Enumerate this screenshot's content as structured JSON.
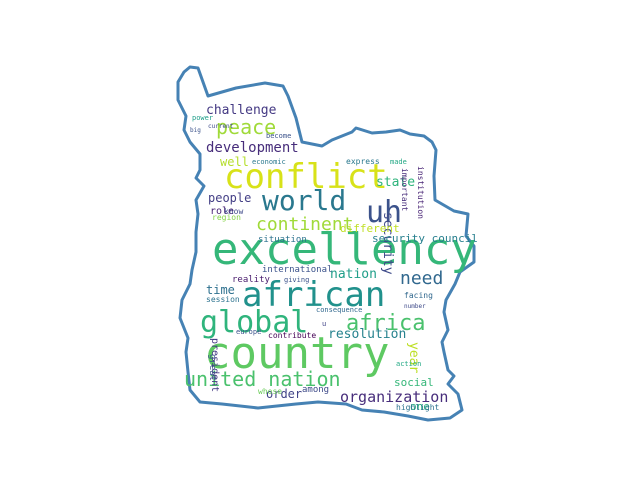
{
  "colors": {
    "outline": "#4682b4",
    "background": "#ffffff",
    "palette": [
      "#440154",
      "#3b528b",
      "#21918c",
      "#5ec962",
      "#b5de2b",
      "#fde725"
    ]
  },
  "words": [
    {
      "text": "country",
      "color": "#5ec962"
    },
    {
      "text": "excellency",
      "color": "#35b779"
    },
    {
      "text": "african",
      "color": "#21918c"
    },
    {
      "text": "conflict",
      "color": "#d8e219"
    },
    {
      "text": "world",
      "color": "#2a788e"
    },
    {
      "text": "uh",
      "color": "#3b528b"
    },
    {
      "text": "global",
      "color": "#2fb47c"
    },
    {
      "text": "africa",
      "color": "#4ac16d"
    },
    {
      "text": "united nation",
      "color": "#4ac16d"
    },
    {
      "text": "continent",
      "color": "#a0da39"
    },
    {
      "text": "peace",
      "color": "#a0da39"
    },
    {
      "text": "need",
      "color": "#31688e"
    },
    {
      "text": "organization",
      "color": "#472d7b"
    },
    {
      "text": "development",
      "color": "#472d7b"
    },
    {
      "text": "challenge",
      "color": "#443983"
    },
    {
      "text": "security",
      "color": "#3e4a89"
    },
    {
      "text": "state",
      "color": "#2fb47c"
    },
    {
      "text": "nation",
      "color": "#1f9e89"
    },
    {
      "text": "resolution",
      "color": "#26828e"
    },
    {
      "text": "people",
      "color": "#433e85"
    },
    {
      "text": "different",
      "color": "#c0df25"
    },
    {
      "text": "time",
      "color": "#2d708e"
    },
    {
      "text": "social",
      "color": "#35b779"
    },
    {
      "text": "security council",
      "color": "#277f8e"
    },
    {
      "text": "year",
      "color": "#bddf26"
    },
    {
      "text": "order",
      "color": "#414487"
    },
    {
      "text": "one",
      "color": "#2ab07f"
    },
    {
      "text": "well",
      "color": "#b5de2b"
    },
    {
      "text": "international",
      "color": "#3b528b"
    },
    {
      "text": "situation",
      "color": "#2c728e"
    },
    {
      "text": "role",
      "color": "#482475"
    },
    {
      "text": "reality",
      "color": "#481a6c"
    },
    {
      "text": "know",
      "color": "#3e4a89"
    },
    {
      "text": "region",
      "color": "#86d549"
    },
    {
      "text": "facing",
      "color": "#31688e"
    },
    {
      "text": "economic",
      "color": "#2a788e"
    },
    {
      "text": "become",
      "color": "#3b528b"
    },
    {
      "text": "made",
      "color": "#22a884"
    },
    {
      "text": "express",
      "color": "#2a788e"
    },
    {
      "text": "important",
      "color": "#472d7b"
    },
    {
      "text": "session",
      "color": "#2c728e"
    },
    {
      "text": "contribute",
      "color": "#440154"
    },
    {
      "text": "europe",
      "color": "#3b528b"
    },
    {
      "text": "president",
      "color": "#443983"
    },
    {
      "text": "consequence",
      "color": "#31688e"
    },
    {
      "text": "among",
      "color": "#3e4a89"
    },
    {
      "text": "whose",
      "color": "#6ccd5a"
    },
    {
      "text": "great",
      "color": "#3b528b"
    },
    {
      "text": "highlight",
      "color": "#2c728e"
    },
    {
      "text": "number",
      "color": "#3e4a89"
    },
    {
      "text": "action",
      "color": "#22a884"
    },
    {
      "text": "giving",
      "color": "#3b528b"
    },
    {
      "text": "institution",
      "color": "#482475"
    },
    {
      "text": "u",
      "color": "#414487"
    },
    {
      "text": "current",
      "color": "#3e4a89"
    },
    {
      "text": "power",
      "color": "#1f9e89"
    },
    {
      "text": "big",
      "color": "#3b528b"
    }
  ]
}
